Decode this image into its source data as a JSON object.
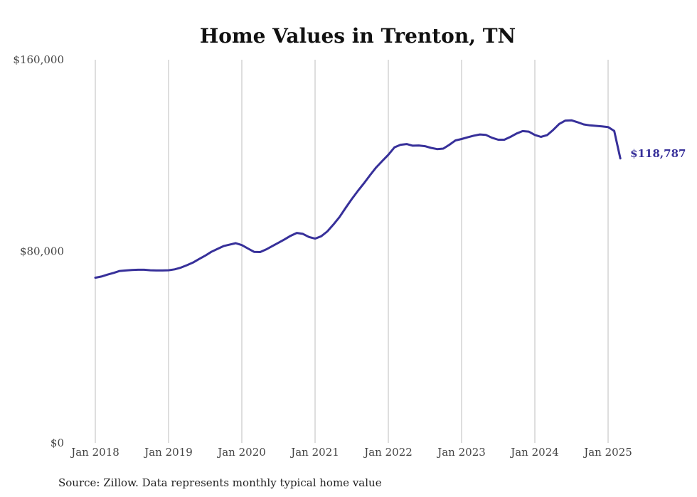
{
  "chart_data": {
    "type": "line",
    "title": "Home Values in Trenton, TN",
    "xlabel": "",
    "ylabel": "",
    "x_ticks": [
      "Jan 2018",
      "Jan 2019",
      "Jan 2020",
      "Jan 2021",
      "Jan 2022",
      "Jan 2023",
      "Jan 2024",
      "Jan 2025"
    ],
    "y_ticks": [
      "$0",
      "$80,000",
      "$160,000"
    ],
    "y_tick_values": [
      0,
      80000,
      160000
    ],
    "ylim": [
      0,
      160000
    ],
    "xlim": [
      "2018-01",
      "2025-03"
    ],
    "grid": "vertical",
    "series": [
      {
        "color": "#37309a",
        "end_label": "$118,787",
        "points": [
          [
            "2018-01",
            69000
          ],
          [
            "2018-02",
            69500
          ],
          [
            "2018-03",
            70300
          ],
          [
            "2018-04",
            71000
          ],
          [
            "2018-05",
            71800
          ],
          [
            "2018-06",
            72000
          ],
          [
            "2018-07",
            72200
          ],
          [
            "2018-08",
            72300
          ],
          [
            "2018-09",
            72300
          ],
          [
            "2018-10",
            72100
          ],
          [
            "2018-11",
            72000
          ],
          [
            "2018-12",
            72000
          ],
          [
            "2019-01",
            72100
          ],
          [
            "2019-02",
            72500
          ],
          [
            "2019-03",
            73200
          ],
          [
            "2019-04",
            74200
          ],
          [
            "2019-05",
            75300
          ],
          [
            "2019-06",
            76800
          ],
          [
            "2019-07",
            78200
          ],
          [
            "2019-08",
            79800
          ],
          [
            "2019-09",
            81000
          ],
          [
            "2019-10",
            82200
          ],
          [
            "2019-11",
            82800
          ],
          [
            "2019-12",
            83400
          ],
          [
            "2020-01",
            82600
          ],
          [
            "2020-02",
            81200
          ],
          [
            "2020-03",
            79800
          ],
          [
            "2020-04",
            79700
          ],
          [
            "2020-05",
            80800
          ],
          [
            "2020-06",
            82200
          ],
          [
            "2020-07",
            83600
          ],
          [
            "2020-08",
            85000
          ],
          [
            "2020-09",
            86500
          ],
          [
            "2020-10",
            87700
          ],
          [
            "2020-11",
            87300
          ],
          [
            "2020-12",
            86000
          ],
          [
            "2021-01",
            85300
          ],
          [
            "2021-02",
            86300
          ],
          [
            "2021-03",
            88300
          ],
          [
            "2021-04",
            91200
          ],
          [
            "2021-05",
            94300
          ],
          [
            "2021-06",
            98100
          ],
          [
            "2021-07",
            101800
          ],
          [
            "2021-08",
            105200
          ],
          [
            "2021-09",
            108400
          ],
          [
            "2021-10",
            111800
          ],
          [
            "2021-11",
            115000
          ],
          [
            "2021-12",
            117700
          ],
          [
            "2022-01",
            120300
          ],
          [
            "2022-02",
            123400
          ],
          [
            "2022-03",
            124500
          ],
          [
            "2022-04",
            124800
          ],
          [
            "2022-05",
            124100
          ],
          [
            "2022-06",
            124200
          ],
          [
            "2022-07",
            123900
          ],
          [
            "2022-08",
            123200
          ],
          [
            "2022-09",
            122700
          ],
          [
            "2022-10",
            122900
          ],
          [
            "2022-11",
            124500
          ],
          [
            "2022-12",
            126300
          ],
          [
            "2023-01",
            126900
          ],
          [
            "2023-02",
            127600
          ],
          [
            "2023-03",
            128300
          ],
          [
            "2023-04",
            128800
          ],
          [
            "2023-05",
            128600
          ],
          [
            "2023-06",
            127400
          ],
          [
            "2023-07",
            126600
          ],
          [
            "2023-08",
            126600
          ],
          [
            "2023-09",
            127800
          ],
          [
            "2023-10",
            129200
          ],
          [
            "2023-11",
            130200
          ],
          [
            "2023-12",
            130000
          ],
          [
            "2024-01",
            128600
          ],
          [
            "2024-02",
            127800
          ],
          [
            "2024-03",
            128500
          ],
          [
            "2024-04",
            130700
          ],
          [
            "2024-05",
            133200
          ],
          [
            "2024-06",
            134600
          ],
          [
            "2024-07",
            134700
          ],
          [
            "2024-08",
            133900
          ],
          [
            "2024-09",
            133000
          ],
          [
            "2024-10",
            132600
          ],
          [
            "2024-11",
            132400
          ],
          [
            "2024-12",
            132200
          ],
          [
            "2025-01",
            131900
          ],
          [
            "2025-02",
            130300
          ],
          [
            "2025-03",
            118787
          ]
        ]
      }
    ]
  },
  "source": "Source: Zillow. Data represents monthly typical home value"
}
